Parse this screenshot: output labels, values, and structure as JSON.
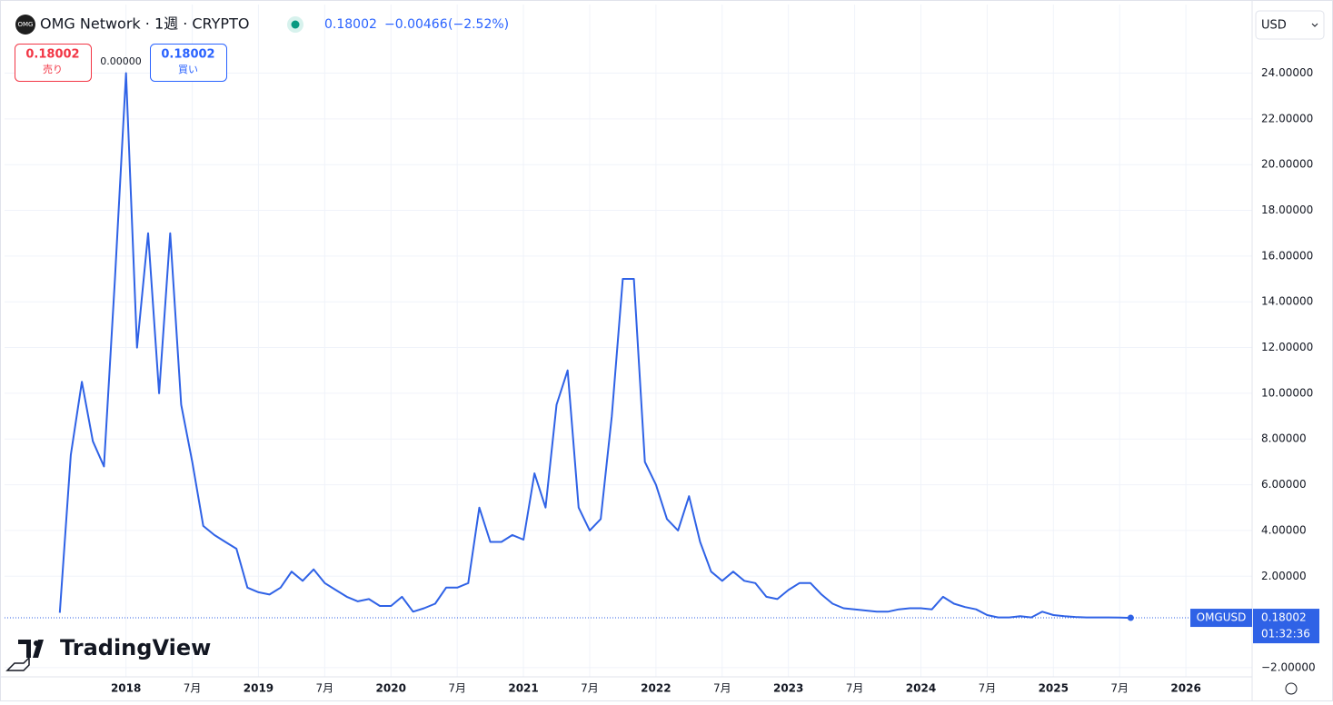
{
  "header": {
    "icon": "OMG",
    "title": "OMG Network · 1週 · CRYPTO",
    "price": "0.18002",
    "change": "−0.00466",
    "change_pct": "(−2.52%)",
    "currency": "USD"
  },
  "trade": {
    "sell_price": "0.18002",
    "sell_label": "売り",
    "spread": "0.00000",
    "buy_price": "0.18002",
    "buy_label": "買い"
  },
  "price_tag": {
    "countdown": "01:32:36",
    "last_label": "0.18002"
  },
  "logo": "TradingView",
  "chart_data": {
    "type": "line",
    "x": [
      "2017-07",
      "2017-08",
      "2017-09",
      "2017-10",
      "2017-11",
      "2017-12",
      "2018-01",
      "2018-02",
      "2018-03",
      "2018-04",
      "2018-05",
      "2018-06",
      "2018-07",
      "2018-08",
      "2018-09",
      "2018-10",
      "2018-11",
      "2018-12",
      "2019-01",
      "2019-02",
      "2019-03",
      "2019-04",
      "2019-05",
      "2019-06",
      "2019-07",
      "2019-08",
      "2019-09",
      "2019-10",
      "2019-11",
      "2019-12",
      "2020-01",
      "2020-02",
      "2020-03",
      "2020-04",
      "2020-05",
      "2020-06",
      "2020-07",
      "2020-08",
      "2020-09",
      "2020-10",
      "2020-11",
      "2020-12",
      "2021-01",
      "2021-02",
      "2021-03",
      "2021-04",
      "2021-05",
      "2021-06",
      "2021-07",
      "2021-08",
      "2021-09",
      "2021-10",
      "2021-11",
      "2021-12",
      "2022-01",
      "2022-02",
      "2022-03",
      "2022-04",
      "2022-05",
      "2022-06",
      "2022-07",
      "2022-08",
      "2022-09",
      "2022-10",
      "2022-11",
      "2022-12",
      "2023-01",
      "2023-02",
      "2023-03",
      "2023-04",
      "2023-05",
      "2023-06",
      "2023-07",
      "2023-08",
      "2023-09",
      "2023-10",
      "2023-11",
      "2023-12",
      "2024-01",
      "2024-02",
      "2024-03",
      "2024-04",
      "2024-05",
      "2024-06",
      "2024-07",
      "2024-08",
      "2024-09",
      "2024-10",
      "2024-11",
      "2024-12",
      "2025-01",
      "2025-02",
      "2025-03",
      "2025-04",
      "2025-05",
      "2025-06",
      "2025-07",
      "2025-08"
    ],
    "series": [
      {
        "name": "OMGUSD",
        "color": "#2f62e6",
        "values": [
          0.4,
          7.3,
          10.5,
          7.9,
          6.8,
          15,
          24,
          12,
          17,
          10,
          17,
          9.5,
          7,
          4.2,
          3.8,
          3.5,
          3.2,
          1.5,
          1.3,
          1.2,
          1.5,
          2.2,
          1.8,
          2.3,
          1.7,
          1.4,
          1.1,
          0.9,
          1.0,
          0.7,
          0.7,
          1.1,
          0.45,
          0.6,
          0.8,
          1.5,
          1.5,
          1.7,
          5,
          3.5,
          3.5,
          3.8,
          3.6,
          6.5,
          5,
          9.5,
          11,
          5,
          4,
          4.5,
          9,
          15,
          15,
          7,
          6,
          4.5,
          4,
          5.5,
          3.5,
          2.2,
          1.8,
          2.2,
          1.8,
          1.7,
          1.1,
          1.0,
          1.4,
          1.7,
          1.7,
          1.2,
          0.8,
          0.6,
          0.55,
          0.5,
          0.45,
          0.45,
          0.55,
          0.6,
          0.6,
          0.55,
          1.1,
          0.8,
          0.65,
          0.55,
          0.3,
          0.2,
          0.2,
          0.25,
          0.2,
          0.45,
          0.3,
          0.25,
          0.22,
          0.2,
          0.2,
          0.2,
          0.19,
          0.18002
        ]
      }
    ],
    "xlim": [
      "2017-02",
      "2026-07"
    ],
    "xticks": [
      {
        "value": "2018-01",
        "label": "2018"
      },
      {
        "value": "2018-07",
        "label": "7月"
      },
      {
        "value": "2019-01",
        "label": "2019"
      },
      {
        "value": "2019-07",
        "label": "7月"
      },
      {
        "value": "2020-01",
        "label": "2020"
      },
      {
        "value": "2020-07",
        "label": "7月"
      },
      {
        "value": "2021-01",
        "label": "2021"
      },
      {
        "value": "2021-07",
        "label": "7月"
      },
      {
        "value": "2022-01",
        "label": "2022"
      },
      {
        "value": "2022-07",
        "label": "7月"
      },
      {
        "value": "2023-01",
        "label": "2023"
      },
      {
        "value": "2023-07",
        "label": "7月"
      },
      {
        "value": "2024-01",
        "label": "2024"
      },
      {
        "value": "2024-07",
        "label": "7月"
      },
      {
        "value": "2025-01",
        "label": "2025"
      },
      {
        "value": "2025-07",
        "label": "7月"
      },
      {
        "value": "2026-01",
        "label": "2026"
      }
    ],
    "ylim": [
      -2.4,
      27
    ],
    "yticks": [
      {
        "value": -2,
        "label": "−2.00000"
      },
      {
        "value": 2,
        "label": "2.00000"
      },
      {
        "value": 4,
        "label": "4.00000"
      },
      {
        "value": 6,
        "label": "6.00000"
      },
      {
        "value": 8,
        "label": "8.00000"
      },
      {
        "value": 10,
        "label": "10.00000"
      },
      {
        "value": 12,
        "label": "12.00000"
      },
      {
        "value": 14,
        "label": "14.00000"
      },
      {
        "value": 16,
        "label": "16.00000"
      },
      {
        "value": 18,
        "label": "18.00000"
      },
      {
        "value": 20,
        "label": "20.00000"
      },
      {
        "value": 22,
        "label": "22.00000"
      },
      {
        "value": 24,
        "label": "24.00000"
      }
    ],
    "grid": true
  }
}
